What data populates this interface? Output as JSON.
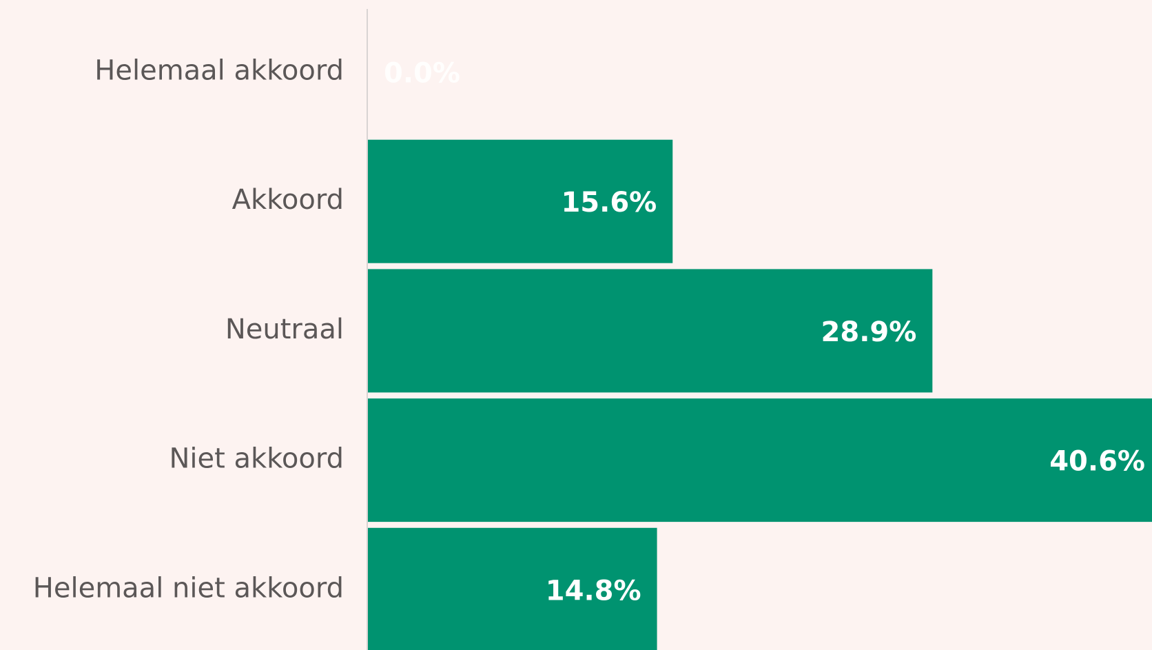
{
  "chart_data": {
    "type": "hbar",
    "categories": [
      "Helemaal akkoord",
      "Akkoord",
      "Neutraal",
      "Niet akkoord",
      "Helemaal niet akkoord"
    ],
    "values": [
      0.0,
      15.6,
      28.9,
      40.6,
      14.8
    ],
    "value_labels": [
      "0.0%",
      "15.6%",
      "28.9%",
      "40.6%",
      "14.8%"
    ],
    "color": "#009370"
  }
}
